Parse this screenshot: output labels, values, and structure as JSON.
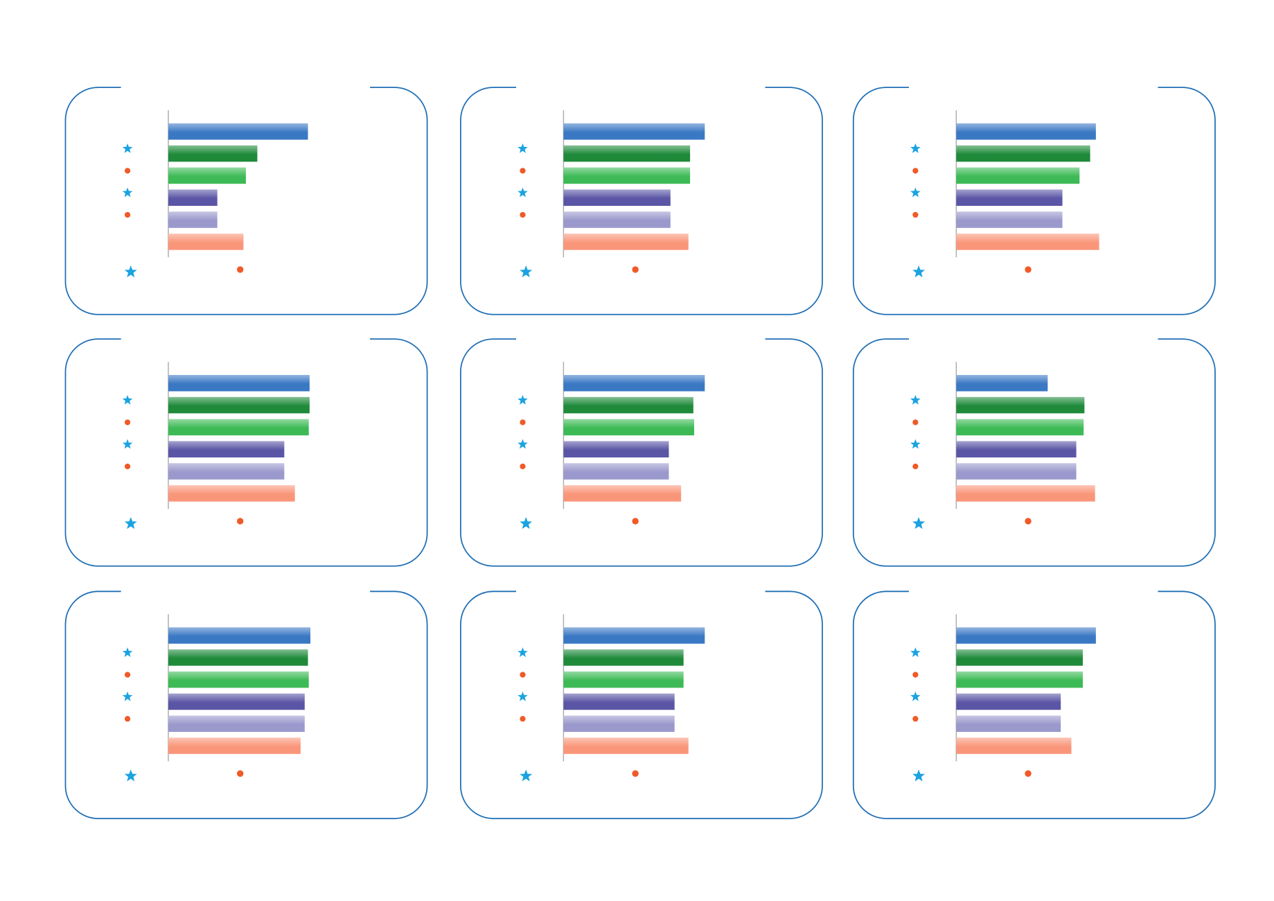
{
  "chart_data": [
    {
      "type": "bar",
      "categories": [
        null,
        null,
        null,
        null,
        null,
        null
      ],
      "values": [
        171,
        109,
        95,
        60,
        60,
        92
      ],
      "colors": [
        "#3a78c4",
        "#1e8a3a",
        "#3dba55",
        "#5a55a5",
        "#9a98cc",
        "#f9967a"
      ]
    },
    {
      "type": "bar",
      "categories": [
        null,
        null,
        null,
        null,
        null,
        null
      ],
      "values": [
        173,
        155,
        155,
        131,
        131,
        153
      ],
      "colors": [
        "#3a78c4",
        "#1e8a3a",
        "#3dba55",
        "#5a55a5",
        "#9a98cc",
        "#f9967a"
      ]
    },
    {
      "type": "bar",
      "categories": [
        null,
        null,
        null,
        null,
        null,
        null
      ],
      "values": [
        171,
        164,
        151,
        130,
        130,
        175
      ],
      "colors": [
        "#3a78c4",
        "#1e8a3a",
        "#3dba55",
        "#5a55a5",
        "#9a98cc",
        "#f9967a"
      ]
    },
    {
      "type": "bar",
      "categories": [
        null,
        null,
        null,
        null,
        null,
        null
      ],
      "values": [
        173,
        173,
        172,
        142,
        142,
        155
      ],
      "colors": [
        "#3a78c4",
        "#1e8a3a",
        "#3dba55",
        "#5a55a5",
        "#9a98cc",
        "#f9967a"
      ]
    },
    {
      "type": "bar",
      "categories": [
        null,
        null,
        null,
        null,
        null,
        null
      ],
      "values": [
        173,
        159,
        160,
        129,
        129,
        144
      ],
      "colors": [
        "#3a78c4",
        "#1e8a3a",
        "#3dba55",
        "#5a55a5",
        "#9a98cc",
        "#f9967a"
      ]
    },
    {
      "type": "bar",
      "categories": [
        null,
        null,
        null,
        null,
        null,
        null
      ],
      "values": [
        112,
        157,
        156,
        147,
        147,
        170
      ],
      "colors": [
        "#3a78c4",
        "#1e8a3a",
        "#3dba55",
        "#5a55a5",
        "#9a98cc",
        "#f9967a"
      ]
    },
    {
      "type": "bar",
      "categories": [
        null,
        null,
        null,
        null,
        null,
        null
      ],
      "values": [
        174,
        171,
        172,
        167,
        167,
        162
      ],
      "colors": [
        "#3a78c4",
        "#1e8a3a",
        "#3dba55",
        "#5a55a5",
        "#9a98cc",
        "#f9967a"
      ]
    },
    {
      "type": "bar",
      "categories": [
        null,
        null,
        null,
        null,
        null,
        null
      ],
      "values": [
        173,
        147,
        147,
        136,
        136,
        153
      ],
      "colors": [
        "#3a78c4",
        "#1e8a3a",
        "#3dba55",
        "#5a55a5",
        "#9a98cc",
        "#f9967a"
      ]
    },
    {
      "type": "bar",
      "categories": [
        null,
        null,
        null,
        null,
        null,
        null
      ],
      "values": [
        171,
        155,
        155,
        128,
        128,
        141
      ],
      "colors": [
        "#3a78c4",
        "#1e8a3a",
        "#3dba55",
        "#5a55a5",
        "#9a98cc",
        "#f9967a"
      ]
    }
  ]
}
